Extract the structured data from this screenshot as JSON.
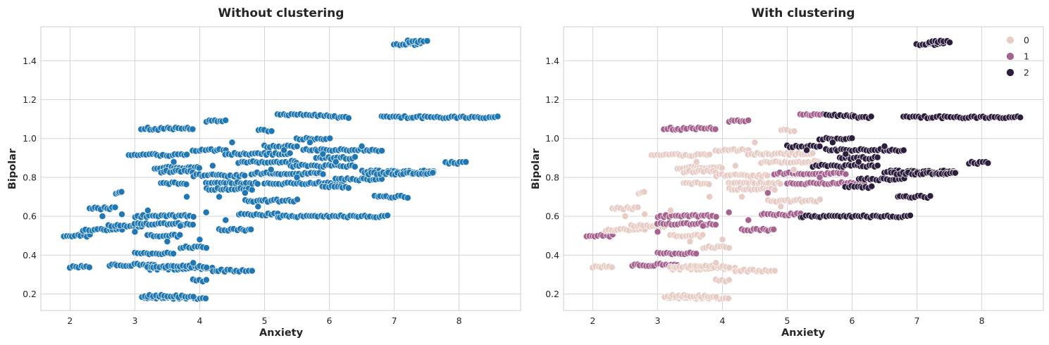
{
  "chart_data": [
    {
      "type": "scatter",
      "title": "Without clustering",
      "xlabel": "Anxiety",
      "ylabel": "Bipolar",
      "xlim": [
        1.55,
        8.95
      ],
      "ylim": [
        0.115,
        1.575
      ],
      "xticks": [
        "2",
        "3",
        "4",
        "5",
        "6",
        "7",
        "8"
      ],
      "yticks": [
        "0.2",
        "0.4",
        "0.6",
        "0.8",
        "1.0",
        "1.2",
        "1.4"
      ],
      "grid": true,
      "color": "#1f77b4",
      "segments": [
        {
          "x": [
            1.9,
            2.3
          ],
          "y": 0.5
        },
        {
          "x": [
            2.0,
            2.3
          ],
          "y": 0.34
        },
        {
          "x": [
            2.3,
            2.7
          ],
          "y": 0.64
        },
        {
          "x": [
            2.2,
            2.8
          ],
          "y": 0.53
        },
        {
          "x": [
            2.6,
            3.3
          ],
          "y": 0.35
        },
        {
          "x": [
            2.7,
            2.8
          ],
          "y": 0.72
        },
        {
          "x": [
            2.6,
            3.1
          ],
          "y": 0.55
        },
        {
          "x": [
            2.9,
            3.8
          ],
          "y": 0.915
        },
        {
          "x": [
            3.1,
            4.1
          ],
          "y": 0.18
        },
        {
          "x": [
            3.1,
            3.9
          ],
          "y": 0.19
        },
        {
          "x": [
            3.1,
            3.9
          ],
          "y": 1.05
        },
        {
          "x": [
            3.0,
            3.6
          ],
          "y": 0.41
        },
        {
          "x": [
            3.2,
            4.2
          ],
          "y": 0.33
        },
        {
          "x": [
            3.2,
            4.1
          ],
          "y": 0.34
        },
        {
          "x": [
            3.0,
            3.9
          ],
          "y": 0.56
        },
        {
          "x": [
            3.0,
            3.9
          ],
          "y": 0.6
        },
        {
          "x": [
            3.2,
            3.7
          ],
          "y": 0.5
        },
        {
          "x": [
            3.3,
            4.0
          ],
          "y": 0.85
        },
        {
          "x": [
            3.4,
            3.9
          ],
          "y": 0.83
        },
        {
          "x": [
            3.4,
            3.8
          ],
          "y": 0.77
        },
        {
          "x": [
            3.7,
            4.1
          ],
          "y": 0.44
        },
        {
          "x": [
            3.9,
            4.1
          ],
          "y": 0.27
        },
        {
          "x": [
            3.9,
            4.4
          ],
          "y": 0.94
        },
        {
          "x": [
            3.9,
            4.7
          ],
          "y": 0.81
        },
        {
          "x": [
            4.1,
            4.9
          ],
          "y": 0.77
        },
        {
          "x": [
            4.1,
            4.8
          ],
          "y": 0.74
        },
        {
          "x": [
            4.1,
            4.4
          ],
          "y": 1.09
        },
        {
          "x": [
            4.2,
            4.8
          ],
          "y": 0.32
        },
        {
          "x": [
            4.3,
            4.8
          ],
          "y": 0.53
        },
        {
          "x": [
            4.4,
            5.4
          ],
          "y": 0.92
        },
        {
          "x": [
            4.6,
            5.5
          ],
          "y": 0.88
        },
        {
          "x": [
            4.6,
            5.2
          ],
          "y": 0.61
        },
        {
          "x": [
            4.7,
            5.5
          ],
          "y": 0.68
        },
        {
          "x": [
            4.8,
            5.9
          ],
          "y": 0.82
        },
        {
          "x": [
            4.9,
            5.1
          ],
          "y": 1.04
        },
        {
          "x": [
            5.0,
            5.5
          ],
          "y": 0.96
        },
        {
          "x": [
            5.0,
            6.2
          ],
          "y": 0.77
        },
        {
          "x": [
            5.2,
            6.9
          ],
          "y": 0.6
        },
        {
          "x": [
            5.2,
            6.0
          ],
          "y": 1.12
        },
        {
          "x": [
            5.4,
            6.4
          ],
          "y": 0.86
        },
        {
          "x": [
            5.5,
            6.0
          ],
          "y": 1.0
        },
        {
          "x": [
            5.6,
            6.8
          ],
          "y": 0.94
        },
        {
          "x": [
            5.8,
            6.4
          ],
          "y": 0.9
        },
        {
          "x": [
            5.9,
            6.3
          ],
          "y": 0.75
        },
        {
          "x": [
            6.0,
            6.3
          ],
          "y": 1.11
        },
        {
          "x": [
            6.1,
            6.8
          ],
          "y": 0.79
        },
        {
          "x": [
            6.5,
            7.6
          ],
          "y": 0.83
        },
        {
          "x": [
            6.6,
            7.6
          ],
          "y": 0.82
        },
        {
          "x": [
            6.7,
            7.2
          ],
          "y": 0.7
        },
        {
          "x": [
            6.8,
            8.6
          ],
          "y": 1.11
        },
        {
          "x": [
            7.3,
            7.6
          ],
          "y": 0.82
        },
        {
          "x": [
            7.8,
            8.1
          ],
          "y": 0.875
        },
        {
          "x": [
            7.0,
            7.4
          ],
          "y": 1.485
        },
        {
          "x": [
            7.2,
            7.5
          ],
          "y": 1.5
        }
      ],
      "scatter": [
        {
          "x": 2.5,
          "y": 0.6
        },
        {
          "x": 2.8,
          "y": 0.61
        },
        {
          "x": 3.0,
          "y": 0.52
        },
        {
          "x": 3.2,
          "y": 0.63
        },
        {
          "x": 3.5,
          "y": 0.47
        },
        {
          "x": 3.7,
          "y": 0.55
        },
        {
          "x": 3.9,
          "y": 0.36
        },
        {
          "x": 4.1,
          "y": 0.62
        },
        {
          "x": 4.0,
          "y": 0.48
        },
        {
          "x": 4.3,
          "y": 0.7
        },
        {
          "x": 4.2,
          "y": 0.86
        },
        {
          "x": 4.5,
          "y": 0.98
        },
        {
          "x": 4.7,
          "y": 0.72
        },
        {
          "x": 4.9,
          "y": 0.65
        },
        {
          "x": 5.1,
          "y": 0.84
        },
        {
          "x": 5.3,
          "y": 0.94
        },
        {
          "x": 5.7,
          "y": 0.98
        },
        {
          "x": 5.9,
          "y": 0.92
        },
        {
          "x": 6.1,
          "y": 0.88
        },
        {
          "x": 6.5,
          "y": 0.96
        },
        {
          "x": 3.6,
          "y": 0.88
        },
        {
          "x": 3.8,
          "y": 0.7
        },
        {
          "x": 4.4,
          "y": 0.58
        },
        {
          "x": 5.5,
          "y": 0.8
        }
      ]
    },
    {
      "type": "scatter",
      "title": "With clustering",
      "xlabel": "Anxiety",
      "ylabel": "Bipolar",
      "xlim": [
        1.55,
        8.95
      ],
      "ylim": [
        0.115,
        1.575
      ],
      "xticks": [
        "2",
        "3",
        "4",
        "5",
        "6",
        "7",
        "8"
      ],
      "yticks": [
        "0.2",
        "0.4",
        "0.6",
        "0.8",
        "1.0",
        "1.2",
        "1.4"
      ],
      "grid": true,
      "legend_placement": "top-right",
      "legend": [
        {
          "label": "0",
          "color": "#e8cdc6"
        },
        {
          "label": "1",
          "color": "#a66390"
        },
        {
          "label": "2",
          "color": "#2d1e3e"
        }
      ],
      "segments": [
        {
          "x": [
            1.9,
            2.3
          ],
          "y": 0.5,
          "c": 1
        },
        {
          "x": [
            2.0,
            2.3
          ],
          "y": 0.34,
          "c": 0
        },
        {
          "x": [
            2.3,
            2.7
          ],
          "y": 0.64,
          "c": 0
        },
        {
          "x": [
            2.2,
            2.8
          ],
          "y": 0.53,
          "c": 0
        },
        {
          "x": [
            2.6,
            3.3
          ],
          "y": 0.35,
          "c": 1
        },
        {
          "x": [
            2.7,
            2.8
          ],
          "y": 0.72,
          "c": 0
        },
        {
          "x": [
            2.6,
            3.1
          ],
          "y": 0.55,
          "c": 0
        },
        {
          "x": [
            2.9,
            3.8
          ],
          "y": 0.915,
          "c": 0
        },
        {
          "x": [
            3.1,
            4.1
          ],
          "y": 0.18,
          "c": 0
        },
        {
          "x": [
            3.1,
            3.9
          ],
          "y": 0.19,
          "c": 0
        },
        {
          "x": [
            3.1,
            3.9
          ],
          "y": 1.05,
          "c": 1
        },
        {
          "x": [
            3.0,
            3.6
          ],
          "y": 0.41,
          "c": 1
        },
        {
          "x": [
            3.2,
            4.2
          ],
          "y": 0.33,
          "c": 0
        },
        {
          "x": [
            3.2,
            4.1
          ],
          "y": 0.34,
          "c": 0
        },
        {
          "x": [
            3.0,
            3.9
          ],
          "y": 0.56,
          "c": 1
        },
        {
          "x": [
            3.0,
            3.9
          ],
          "y": 0.6,
          "c": 1
        },
        {
          "x": [
            3.2,
            3.7
          ],
          "y": 0.5,
          "c": 0
        },
        {
          "x": [
            3.3,
            4.0
          ],
          "y": 0.85,
          "c": 0
        },
        {
          "x": [
            3.4,
            3.9
          ],
          "y": 0.83,
          "c": 0
        },
        {
          "x": [
            3.4,
            3.8
          ],
          "y": 0.77,
          "c": 0
        },
        {
          "x": [
            3.7,
            4.1
          ],
          "y": 0.44,
          "c": 0
        },
        {
          "x": [
            3.9,
            4.1
          ],
          "y": 0.27,
          "c": 0
        },
        {
          "x": [
            3.9,
            4.4
          ],
          "y": 0.94,
          "c": 0
        },
        {
          "x": [
            3.9,
            4.7
          ],
          "y": 0.81,
          "c": 0
        },
        {
          "x": [
            4.1,
            4.9
          ],
          "y": 0.77,
          "c": 0
        },
        {
          "x": [
            4.1,
            4.8
          ],
          "y": 0.74,
          "c": 0
        },
        {
          "x": [
            4.1,
            4.4
          ],
          "y": 1.09,
          "c": 1
        },
        {
          "x": [
            4.2,
            4.8
          ],
          "y": 0.32,
          "c": 0
        },
        {
          "x": [
            4.3,
            4.8
          ],
          "y": 0.53,
          "c": 1
        },
        {
          "x": [
            4.4,
            5.4
          ],
          "y": 0.92,
          "c": 0
        },
        {
          "x": [
            4.6,
            5.5
          ],
          "y": 0.88,
          "c": 0
        },
        {
          "x": [
            4.6,
            5.2
          ],
          "y": 0.61,
          "c": 1
        },
        {
          "x": [
            4.7,
            5.5
          ],
          "y": 0.68,
          "c": 0
        },
        {
          "x": [
            4.8,
            5.9
          ],
          "y": 0.82,
          "c": 1
        },
        {
          "x": [
            4.9,
            5.1
          ],
          "y": 1.04,
          "c": 0
        },
        {
          "x": [
            5.0,
            5.5
          ],
          "y": 0.96,
          "c": 2
        },
        {
          "x": [
            5.0,
            6.2
          ],
          "y": 0.77,
          "c": 1
        },
        {
          "x": [
            5.2,
            6.9
          ],
          "y": 0.6,
          "c": 2
        },
        {
          "x": [
            5.2,
            5.6
          ],
          "y": 1.12,
          "c": 1
        },
        {
          "x": [
            5.6,
            6.0
          ],
          "y": 1.12,
          "c": 2
        },
        {
          "x": [
            5.4,
            6.4
          ],
          "y": 0.86,
          "c": 2
        },
        {
          "x": [
            5.5,
            6.0
          ],
          "y": 1.0,
          "c": 2
        },
        {
          "x": [
            5.6,
            6.8
          ],
          "y": 0.94,
          "c": 2
        },
        {
          "x": [
            5.8,
            6.4
          ],
          "y": 0.9,
          "c": 2
        },
        {
          "x": [
            5.9,
            6.3
          ],
          "y": 0.75,
          "c": 2
        },
        {
          "x": [
            6.0,
            6.3
          ],
          "y": 1.11,
          "c": 2
        },
        {
          "x": [
            6.1,
            6.8
          ],
          "y": 0.79,
          "c": 2
        },
        {
          "x": [
            6.5,
            7.6
          ],
          "y": 0.83,
          "c": 2
        },
        {
          "x": [
            6.6,
            7.6
          ],
          "y": 0.82,
          "c": 2
        },
        {
          "x": [
            6.7,
            7.2
          ],
          "y": 0.7,
          "c": 2
        },
        {
          "x": [
            6.8,
            8.6
          ],
          "y": 1.11,
          "c": 2
        },
        {
          "x": [
            7.3,
            7.6
          ],
          "y": 0.82,
          "c": 2
        },
        {
          "x": [
            7.8,
            8.1
          ],
          "y": 0.875,
          "c": 2
        },
        {
          "x": [
            7.0,
            7.4
          ],
          "y": 1.485,
          "c": 2
        },
        {
          "x": [
            7.2,
            7.5
          ],
          "y": 1.5,
          "c": 2
        }
      ],
      "scatter": [
        {
          "x": 2.5,
          "y": 0.6,
          "c": 0
        },
        {
          "x": 2.8,
          "y": 0.61,
          "c": 0
        },
        {
          "x": 3.0,
          "y": 0.52,
          "c": 1
        },
        {
          "x": 3.2,
          "y": 0.63,
          "c": 0
        },
        {
          "x": 3.5,
          "y": 0.47,
          "c": 0
        },
        {
          "x": 3.7,
          "y": 0.55,
          "c": 1
        },
        {
          "x": 3.9,
          "y": 0.36,
          "c": 0
        },
        {
          "x": 4.1,
          "y": 0.62,
          "c": 1
        },
        {
          "x": 4.0,
          "y": 0.48,
          "c": 0
        },
        {
          "x": 4.3,
          "y": 0.7,
          "c": 0
        },
        {
          "x": 4.2,
          "y": 0.86,
          "c": 0
        },
        {
          "x": 4.5,
          "y": 0.98,
          "c": 0
        },
        {
          "x": 4.7,
          "y": 0.72,
          "c": 1
        },
        {
          "x": 4.9,
          "y": 0.65,
          "c": 0
        },
        {
          "x": 5.1,
          "y": 0.84,
          "c": 0
        },
        {
          "x": 5.3,
          "y": 0.94,
          "c": 2
        },
        {
          "x": 5.7,
          "y": 0.98,
          "c": 2
        },
        {
          "x": 5.9,
          "y": 0.92,
          "c": 2
        },
        {
          "x": 6.1,
          "y": 0.88,
          "c": 2
        },
        {
          "x": 6.5,
          "y": 0.96,
          "c": 2
        },
        {
          "x": 3.6,
          "y": 0.88,
          "c": 0
        },
        {
          "x": 3.8,
          "y": 0.7,
          "c": 0
        },
        {
          "x": 4.4,
          "y": 0.58,
          "c": 1
        },
        {
          "x": 5.5,
          "y": 0.8,
          "c": 1
        }
      ]
    }
  ]
}
